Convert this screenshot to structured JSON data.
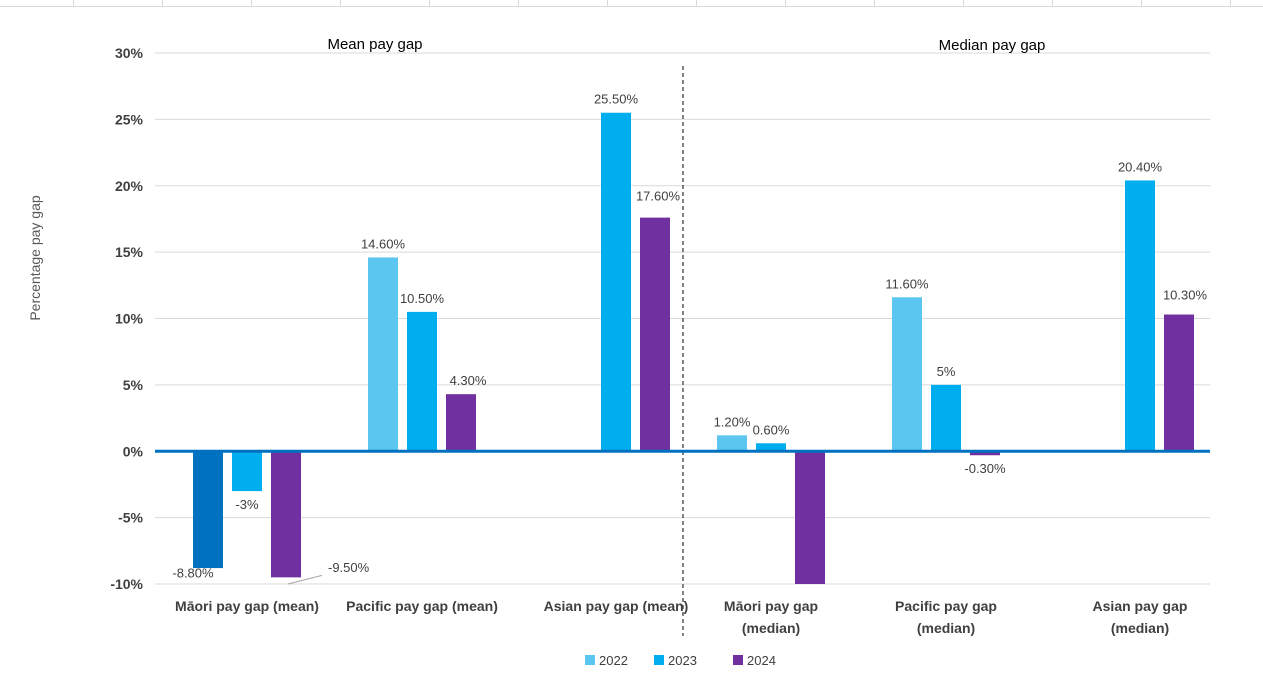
{
  "chart_data": {
    "type": "bar",
    "ylabel": "Percentage pay gap",
    "ylim": [
      -10,
      30
    ],
    "yticks": [
      "30%",
      "25%",
      "20%",
      "15%",
      "10%",
      "5%",
      "0%",
      "-5%",
      "-10%"
    ],
    "ytick_values": [
      30,
      25,
      20,
      15,
      10,
      5,
      0,
      -5,
      -10
    ],
    "group_titles": [
      "Mean pay gap",
      "Median pay gap"
    ],
    "categories": [
      [
        "Māori pay gap (mean)"
      ],
      [
        "Pacific pay gap (mean)"
      ],
      [
        "Asian pay gap (mean)"
      ],
      [
        "Māori pay gap",
        "(median)"
      ],
      [
        "Pacific pay gap",
        "(median)"
      ],
      [
        "Asian pay gap",
        "(median)"
      ]
    ],
    "series": [
      {
        "name": "2022",
        "color": "#5bc7f0",
        "values": [
          -8.8,
          14.6,
          null,
          1.2,
          11.6,
          null
        ],
        "labels": [
          "-8.80%",
          "14.60%",
          "",
          "1.20%",
          "11.60%",
          ""
        ]
      },
      {
        "name": "2023",
        "color": "#00aeef",
        "values": [
          -3,
          10.5,
          25.5,
          0.6,
          5,
          20.4
        ],
        "labels": [
          "-3%",
          "10.50%",
          "25.50%",
          "0.60%",
          "5%",
          "20.40%"
        ]
      },
      {
        "name": "2024",
        "color": "#7030a0",
        "values": [
          -9.5,
          4.3,
          17.6,
          -10,
          -0.3,
          10.3
        ],
        "labels": [
          "-9.50%",
          "4.30%",
          "17.60%",
          "",
          "-0.30%",
          "10.30%"
        ]
      }
    ],
    "first_bar_color_override": "#0070c0",
    "legend_position": "bottom",
    "grid": true
  }
}
